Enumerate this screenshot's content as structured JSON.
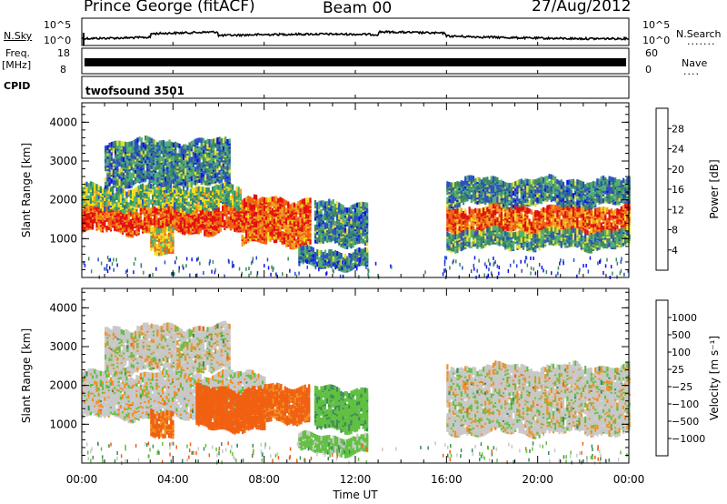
{
  "header": {
    "station": "Prince George (fitACF)",
    "beam": "Beam 00",
    "date": "27/Aug/2012"
  },
  "aux": {
    "nsky_label": "N.Sky",
    "nsky_tick_top": "10^5",
    "nsky_tick_bottom": "10^0",
    "nsearch_label": "N.Search",
    "nsearch_tick_top": "10^5",
    "nsearch_tick_bottom": "10^0",
    "freq_label": "Freq.",
    "freq_unit": "[MHz]",
    "freq_tick_top": "18",
    "freq_tick_bottom": "8",
    "nave_label": "Nave",
    "nave_tick_top": "60",
    "nave_tick_bottom": "0",
    "cpid_label": "CPID",
    "cpid_value": "twofsound 3501"
  },
  "colors": {
    "power": [
      "#1010ee",
      "#2a4ec8",
      "#3c8a5c",
      "#50b070",
      "#f0e020",
      "#f0a020",
      "#f06010",
      "#e01010"
    ],
    "velocity": [
      "#e01010",
      "#f06010",
      "#f09020",
      "#c8c8c8",
      "#c8c8c8",
      "#60c040",
      "#3c8a5c",
      "#2a4ec8",
      "#1010ee"
    ]
  },
  "chart_data": [
    {
      "type": "heatmap",
      "title": "Power",
      "ylabel": "Slant Range [km]",
      "xlabel": "Time UT",
      "xlim": [
        "00:00",
        "24:00"
      ],
      "ylim": [
        0,
        4500
      ],
      "x_ticks": [
        "00:00",
        "04:00",
        "08:00",
        "12:00",
        "16:00",
        "20:00",
        "00:00"
      ],
      "y_ticks": [
        "1000",
        "2000",
        "3000",
        "4000"
      ],
      "colorbar": {
        "label": "Power [dB]",
        "ticks": [
          "4",
          "8",
          "12",
          "16",
          "20",
          "24",
          "28"
        ],
        "range": [
          0,
          32
        ]
      },
      "echo_bands": [
        {
          "t_start": 0.0,
          "t_end": 8.5,
          "range_km": [
            1200,
            1800
          ],
          "level": 28
        },
        {
          "t_start": 0.0,
          "t_end": 7.0,
          "range_km": [
            1800,
            2300
          ],
          "level": 14
        },
        {
          "t_start": 1.0,
          "t_end": 6.5,
          "range_km": [
            2400,
            3500
          ],
          "level": 10
        },
        {
          "t_start": 3.0,
          "t_end": 4.0,
          "range_km": [
            700,
            1300
          ],
          "level": 20
        },
        {
          "t_start": 7.0,
          "t_end": 10.0,
          "range_km": [
            900,
            2000
          ],
          "level": 26
        },
        {
          "t_start": 10.2,
          "t_end": 12.5,
          "range_km": [
            900,
            1900
          ],
          "level": 10
        },
        {
          "t_start": 9.5,
          "t_end": 12.5,
          "range_km": [
            300,
            700
          ],
          "level": 10
        },
        {
          "t_start": 16.0,
          "t_end": 24.0,
          "range_km": [
            1200,
            1800
          ],
          "level": 26
        },
        {
          "t_start": 16.0,
          "t_end": 24.0,
          "range_km": [
            800,
            1200
          ],
          "level": 12
        },
        {
          "t_start": 16.0,
          "t_end": 24.0,
          "range_km": [
            1900,
            2500
          ],
          "level": 10
        }
      ]
    },
    {
      "type": "heatmap",
      "title": "Velocity",
      "ylabel": "Slant Range [km]",
      "xlabel": "Time UT",
      "xlim": [
        "00:00",
        "24:00"
      ],
      "ylim": [
        0,
        4500
      ],
      "x_ticks": [
        "00:00",
        "04:00",
        "08:00",
        "12:00",
        "16:00",
        "20:00",
        "00:00"
      ],
      "y_ticks": [
        "1000",
        "2000",
        "3000",
        "4000"
      ],
      "colorbar": {
        "label": "Velocity [m s⁻¹]",
        "ticks": [
          "1000",
          "500",
          "100",
          "25",
          "−25",
          "−100",
          "−500",
          "−1000"
        ]
      },
      "echo_bands": [
        {
          "t_start": 0.0,
          "t_end": 8.0,
          "range_km": [
            1200,
            2300
          ],
          "velocity": 0
        },
        {
          "t_start": 1.0,
          "t_end": 6.5,
          "range_km": [
            2400,
            3500
          ],
          "velocity": 0
        },
        {
          "t_start": 3.0,
          "t_end": 4.0,
          "range_km": [
            700,
            1300
          ],
          "velocity": -300
        },
        {
          "t_start": 5.0,
          "t_end": 8.0,
          "range_km": [
            900,
            1900
          ],
          "velocity": -400
        },
        {
          "t_start": 8.0,
          "t_end": 10.0,
          "range_km": [
            1100,
            2000
          ],
          "velocity": -300
        },
        {
          "t_start": 10.2,
          "t_end": 12.5,
          "range_km": [
            900,
            1900
          ],
          "velocity": 200
        },
        {
          "t_start": 9.5,
          "t_end": 12.5,
          "range_km": [
            300,
            700
          ],
          "velocity": 100
        },
        {
          "t_start": 16.0,
          "t_end": 24.0,
          "range_km": [
            800,
            2500
          ],
          "velocity": 0
        }
      ]
    }
  ]
}
